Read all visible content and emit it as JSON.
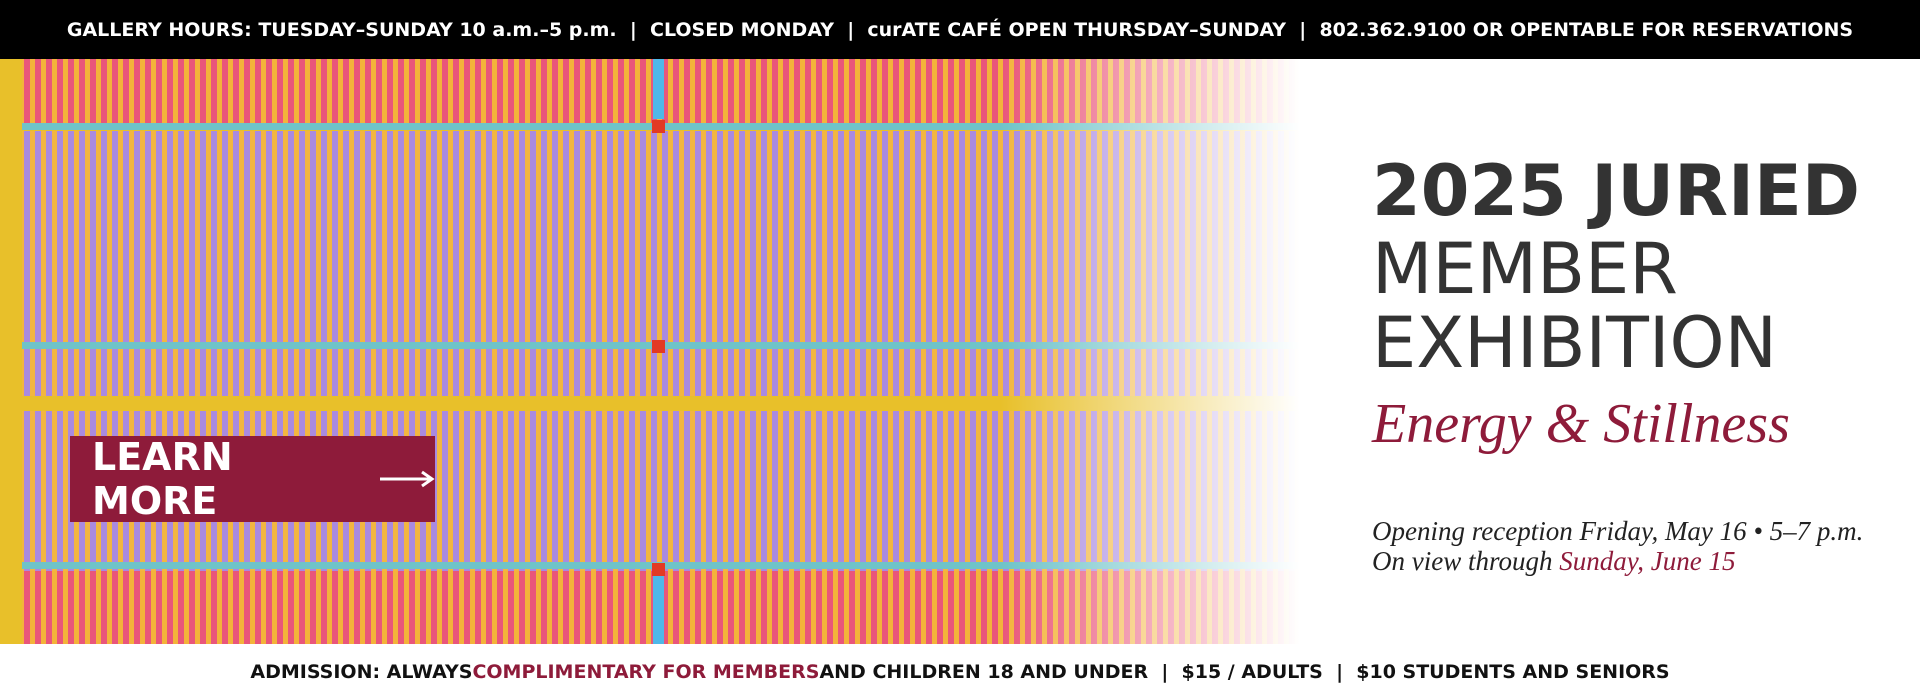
{
  "top_bar": {
    "text": "GALLERY HOURS: TUESDAY–SUNDAY 10 a.m.–5 p.m.  |  CLOSED MONDAY  |  curATE CAFÉ OPEN THURSDAY–SUNDAY  |  802.362.9100 OR OPENTABLE FOR RESERVATIONS"
  },
  "hero": {
    "title_line1": "2025 JURIED",
    "title_line2": "MEMBER",
    "title_line3": "EXHIBITION",
    "subtitle": "Energy & Stillness",
    "reception": "Opening reception Friday, May 16 • 5–7 p.m.",
    "on_view_prefix": "On view through",
    "on_view_date": "Sunday, June 15",
    "button": "LEARN MORE"
  },
  "admission": {
    "prefix": "ADMISSION: ALWAYS",
    "highlight": "COMPLIMENTARY FOR MEMBERS",
    "suffix": "AND CHILDREN 18 AND UNDER  |  $15 / ADULTS  |  $10 STUDENTS AND SENIORS"
  }
}
